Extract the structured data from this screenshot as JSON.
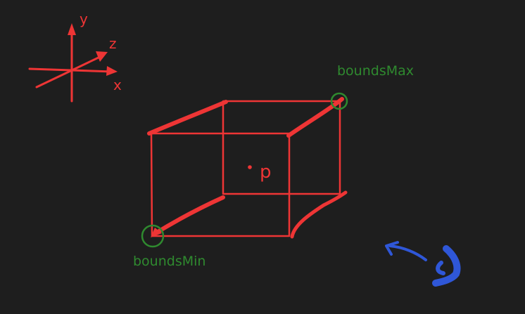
{
  "colors": {
    "background": "#1e1e1e",
    "red": "#ee3535",
    "green": "#2f8a2f",
    "blue": "#2f57d8"
  },
  "axes": {
    "x": "x",
    "y": "y",
    "z": "z"
  },
  "labels": {
    "bounds_max": "boundsMax",
    "bounds_min": "boundsMin",
    "point": "p"
  },
  "icons": {
    "rotate": "rotate-arrow-icon"
  }
}
